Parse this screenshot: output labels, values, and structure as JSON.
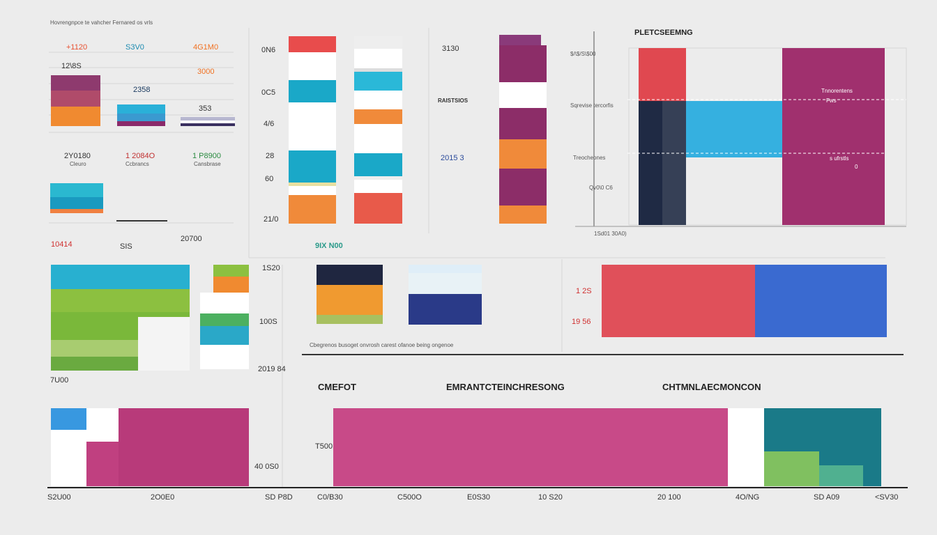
{
  "header": {
    "caption": "Hovrengnpce te vahcher Fernared os vrls"
  },
  "top_left": {
    "values": [
      "+1120",
      "S3V0",
      "4G1M0",
      "12\\8S",
      "3000",
      "2358",
      "353"
    ],
    "stats": [
      {
        "value": "2Y0180",
        "label": "Cleuro"
      },
      {
        "value": "1 2084O",
        "label": "Ccbrancs"
      },
      {
        "value": "1 P8900",
        "label": "Cansbrase"
      }
    ],
    "footer": [
      "10414",
      "SIS",
      "20700"
    ]
  },
  "stacked_axis": [
    "0N6",
    "0C5",
    "4/6",
    "28",
    "60",
    "21/0"
  ],
  "center": {
    "labels": [
      "3130",
      "RAISTSIOS",
      "2015 3"
    ]
  },
  "right_chart": {
    "title": "PLETCSEEMNG",
    "axis": [
      "$/\\$/S\\$00",
      "Sqrevise tercorfis",
      "Treocheones",
      "Qv0\\0 C6",
      "1Sd01 30A0)"
    ],
    "notes": [
      "Tnnorentens",
      "Fws",
      "s ufrstls",
      "0"
    ]
  },
  "middle": {
    "tag": "9IX N00",
    "left_axis": [
      "1S20",
      "100S",
      "2019 84",
      "7U00"
    ],
    "caption": "Cbegrenos busoget onvrosh carest ofanoe being ongenoe",
    "right_axis": [
      "1 2S",
      "19 56"
    ]
  },
  "bottom": {
    "headings": [
      "CMEFOT",
      "EMRANTCTEINCHRESONG",
      "CHTMNLAECMONCON"
    ],
    "side": [
      "T500",
      "40 0S0"
    ],
    "axis": [
      "S2U00",
      "2O0E0",
      "SD P8D",
      "C0/B30",
      "C500O",
      "E0S30",
      "10 S20",
      "20 100",
      "4O/NG",
      "SD A09",
      "<SV30"
    ]
  }
}
